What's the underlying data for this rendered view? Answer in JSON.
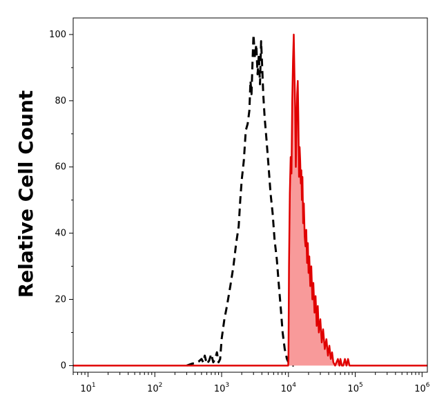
{
  "chart_data": {
    "type": "area",
    "title": "",
    "xlabel": "",
    "ylabel": "Relative Cell Count",
    "xscale": "log",
    "xlim": [
      6,
      1200000
    ],
    "ylim": [
      -2,
      105
    ],
    "x_ticks": [
      {
        "base": "10",
        "exp": "1"
      },
      {
        "base": "10",
        "exp": "2"
      },
      {
        "base": "10",
        "exp": "3"
      },
      {
        "base": "10",
        "exp": "4"
      },
      {
        "base": "10",
        "exp": "5"
      },
      {
        "base": "10",
        "exp": "6"
      }
    ],
    "y_ticks": [
      "0",
      "20",
      "40",
      "60",
      "80",
      "100"
    ],
    "grid": false,
    "legend": "none",
    "series": [
      {
        "style": "dashed",
        "color": "#000000",
        "fill": "none",
        "points": [
          [
            300,
            0
          ],
          [
            350,
            0.5
          ],
          [
            400,
            0.8
          ],
          [
            450,
            1.2
          ],
          [
            500,
            2
          ],
          [
            530,
            1
          ],
          [
            560,
            3
          ],
          [
            600,
            0.5
          ],
          [
            650,
            1.5
          ],
          [
            700,
            3.5
          ],
          [
            750,
            1
          ],
          [
            800,
            2
          ],
          [
            850,
            4
          ],
          [
            900,
            1
          ],
          [
            950,
            2
          ],
          [
            1000,
            8
          ],
          [
            1100,
            14
          ],
          [
            1200,
            18
          ],
          [
            1350,
            24
          ],
          [
            1500,
            30
          ],
          [
            1650,
            37
          ],
          [
            1800,
            42
          ],
          [
            1900,
            50
          ],
          [
            2000,
            56
          ],
          [
            2150,
            62
          ],
          [
            2300,
            71
          ],
          [
            2450,
            73
          ],
          [
            2600,
            77
          ],
          [
            2700,
            86
          ],
          [
            2800,
            82
          ],
          [
            2900,
            92
          ],
          [
            3000,
            100
          ],
          [
            3150,
            93
          ],
          [
            3300,
            97
          ],
          [
            3450,
            88
          ],
          [
            3600,
            94
          ],
          [
            3750,
            85
          ],
          [
            3900,
            98
          ],
          [
            4050,
            90
          ],
          [
            4200,
            82
          ],
          [
            4400,
            75
          ],
          [
            4700,
            68
          ],
          [
            5000,
            61
          ],
          [
            5400,
            52
          ],
          [
            5800,
            46
          ],
          [
            6200,
            38
          ],
          [
            6700,
            32
          ],
          [
            7200,
            24
          ],
          [
            7700,
            17
          ],
          [
            8200,
            10
          ],
          [
            8800,
            5
          ],
          [
            9500,
            2
          ],
          [
            10000,
            1
          ],
          [
            10500,
            0.5
          ],
          [
            11000,
            0
          ],
          [
            12000,
            0
          ]
        ]
      },
      {
        "style": "solid",
        "color": "#e00000",
        "fill": "#f89a9a",
        "points": [
          [
            6,
            0
          ],
          [
            100,
            0
          ],
          [
            1000,
            0
          ],
          [
            9900,
            0
          ],
          [
            10000,
            2
          ],
          [
            10200,
            30
          ],
          [
            10500,
            52
          ],
          [
            10800,
            63
          ],
          [
            11100,
            58
          ],
          [
            11400,
            80
          ],
          [
            11700,
            92
          ],
          [
            12000,
            100
          ],
          [
            12300,
            88
          ],
          [
            12600,
            78
          ],
          [
            12900,
            60
          ],
          [
            13200,
            72
          ],
          [
            13500,
            82
          ],
          [
            13800,
            86
          ],
          [
            14100,
            74
          ],
          [
            14400,
            57
          ],
          [
            14700,
            66
          ],
          [
            15000,
            62
          ],
          [
            15300,
            55
          ],
          [
            15600,
            59
          ],
          [
            15900,
            50
          ],
          [
            16200,
            57
          ],
          [
            16600,
            43
          ],
          [
            17000,
            49
          ],
          [
            17500,
            39
          ],
          [
            18000,
            36
          ],
          [
            18500,
            41
          ],
          [
            19000,
            31
          ],
          [
            19500,
            37
          ],
          [
            20000,
            28
          ],
          [
            20500,
            33
          ],
          [
            21200,
            24
          ],
          [
            22000,
            30
          ],
          [
            22800,
            20
          ],
          [
            23600,
            25
          ],
          [
            24500,
            16
          ],
          [
            25500,
            21
          ],
          [
            26500,
            12
          ],
          [
            27500,
            18
          ],
          [
            28500,
            10
          ],
          [
            30000,
            14
          ],
          [
            31500,
            7
          ],
          [
            33000,
            11
          ],
          [
            35000,
            5
          ],
          [
            37000,
            8
          ],
          [
            39000,
            3
          ],
          [
            41000,
            6
          ],
          [
            43000,
            2
          ],
          [
            45000,
            4
          ],
          [
            47000,
            1
          ],
          [
            50000,
            0
          ],
          [
            55000,
            2
          ],
          [
            58000,
            0
          ],
          [
            60000,
            2
          ],
          [
            63000,
            0
          ],
          [
            66000,
            0
          ],
          [
            70000,
            2
          ],
          [
            74000,
            0
          ],
          [
            78000,
            2
          ],
          [
            82000,
            0
          ],
          [
            90000,
            0
          ],
          [
            200000,
            0
          ],
          [
            1200000,
            0
          ]
        ]
      }
    ]
  }
}
